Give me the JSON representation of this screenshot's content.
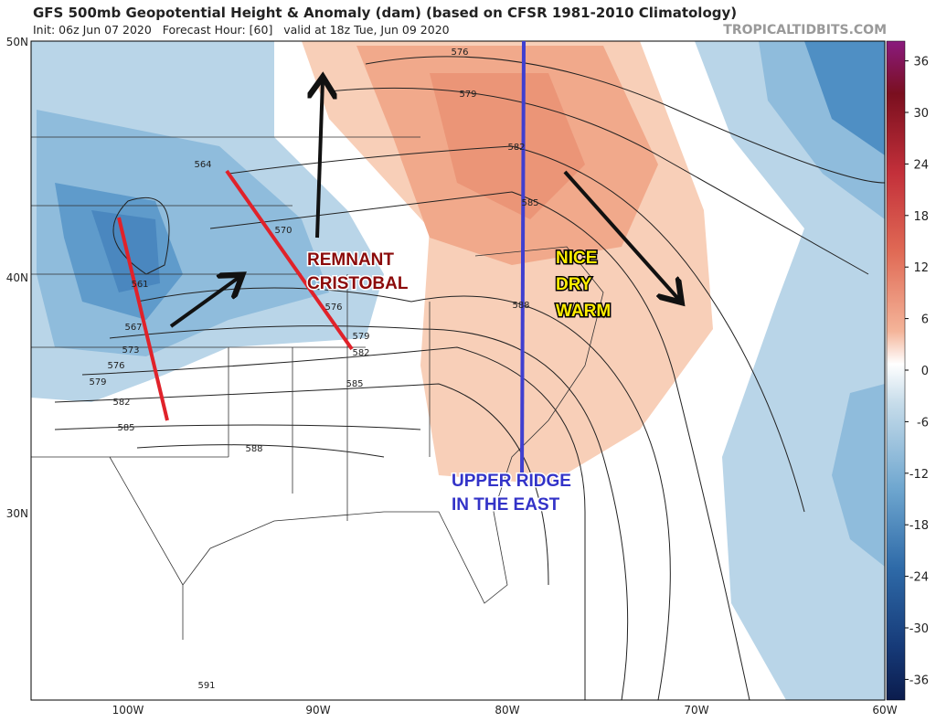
{
  "header": {
    "title": "GFS 500mb Geopotential Height & Anomaly (dam) (based on CFSR 1981-2010 Climatology)",
    "subtitle": "Init: 06z Jun 07 2020   Forecast Hour: [60]   valid at 18z Tue, Jun 09 2020",
    "credit": "TROPICALTIDBITS.COM"
  },
  "map": {
    "lat_labels": [
      "50N",
      "40N",
      "30N"
    ],
    "lon_labels": [
      "100W",
      "90W",
      "80W",
      "70W",
      "60W"
    ],
    "colorbar_ticks": [
      36,
      30,
      24,
      18,
      12,
      6,
      0,
      -6,
      -12,
      -18,
      -24,
      -30,
      -36
    ],
    "contour_labels": [
      576,
      579,
      582,
      585,
      588,
      564,
      570,
      561,
      567,
      573,
      576,
      579,
      582,
      585,
      588,
      585,
      582,
      579,
      576,
      591
    ],
    "annotations": {
      "remnant": [
        "REMNANT",
        "CRISTOBAL"
      ],
      "nice": [
        "NICE",
        "DRY",
        "WARM"
      ],
      "ridge": [
        "UPPER RIDGE",
        "IN THE EAST"
      ]
    }
  }
}
